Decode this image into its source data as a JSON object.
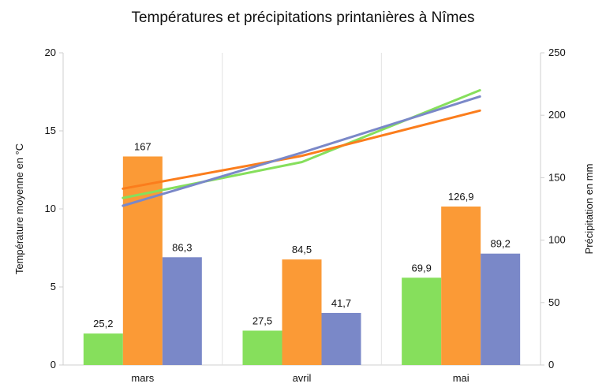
{
  "chart_data": {
    "type": "bar",
    "title": "Températures et précipitations printanières à Nîmes",
    "ylabel_left": "Température moyenne en °C",
    "ylabel_right": "Précipitation en mm",
    "categories": [
      "mars",
      "avril",
      "mai"
    ],
    "ylim_left": [
      0,
      20
    ],
    "ylim_right": [
      0,
      250
    ],
    "yticks_left": [
      "0",
      "5",
      "10",
      "15",
      "20"
    ],
    "yticks_right": [
      "0",
      "50",
      "100",
      "150",
      "200",
      "250"
    ],
    "grid": "vertical category separators",
    "bar_series": [
      {
        "color": "#86df5c",
        "values": [
          25.2,
          27.5,
          69.9
        ],
        "labels": [
          "25,2",
          "27,5",
          "69,9"
        ]
      },
      {
        "color": "#fb9a36",
        "values": [
          167,
          84.5,
          126.9
        ],
        "labels": [
          "167",
          "84,5",
          "126,9"
        ]
      },
      {
        "color": "#7a88c8",
        "values": [
          86.3,
          41.7,
          89.2
        ],
        "labels": [
          "86,3",
          "41,7",
          "89,2"
        ]
      }
    ],
    "line_series": [
      {
        "color": "#86df5c",
        "axis": "left",
        "values": [
          10.7,
          13.0,
          17.6
        ]
      },
      {
        "color": "#fb7d1c",
        "axis": "left",
        "values": [
          11.3,
          13.4,
          16.3
        ]
      },
      {
        "color": "#7a88c8",
        "axis": "left",
        "values": [
          10.2,
          13.6,
          17.2
        ]
      }
    ]
  }
}
